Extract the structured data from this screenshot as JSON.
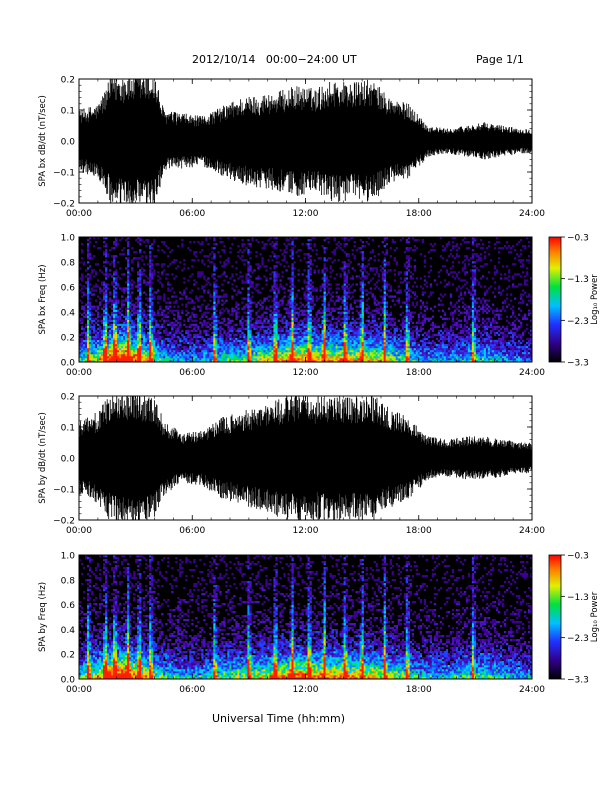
{
  "header": {
    "title": "2012/10/14   00:00−24:00 UT",
    "page": "Page 1/1"
  },
  "xaxis_title": "Universal Time (hh:mm)",
  "chart_data": [
    {
      "type": "line",
      "ylabel": "SPA bx dB/dt (nT/sec)",
      "xlim": [
        0,
        24
      ],
      "ylim": [
        -0.2,
        0.2
      ],
      "xticks": [
        0,
        6,
        12,
        18,
        24
      ],
      "xtick_labels": [
        "00:00",
        "06:00",
        "12:00",
        "18:00",
        "24:00"
      ],
      "yticks": [
        -0.2,
        -0.1,
        0.0,
        0.1,
        0.2
      ],
      "ytick_labels": [
        "−0.2",
        "−0.1",
        "0.0",
        "0.1",
        "0.2"
      ],
      "envelope": {
        "hours": [
          0,
          1,
          1.8,
          2.5,
          3.2,
          4.0,
          4.5,
          5.5,
          6.5,
          7.5,
          8.5,
          9.5,
          10.5,
          11.5,
          12.5,
          13.5,
          14.5,
          15.5,
          16.5,
          17.5,
          18.5,
          19.5,
          20.5,
          21.5,
          22.5,
          23.5,
          24
        ],
        "amplitude": [
          0.1,
          0.12,
          0.22,
          0.22,
          0.22,
          0.22,
          0.1,
          0.09,
          0.08,
          0.11,
          0.14,
          0.15,
          0.16,
          0.18,
          0.17,
          0.2,
          0.19,
          0.2,
          0.14,
          0.12,
          0.05,
          0.04,
          0.05,
          0.06,
          0.05,
          0.04,
          0.04
        ]
      }
    },
    {
      "type": "heatmap",
      "ylabel": "SPA bx Freq (Hz)",
      "xlim": [
        0,
        24
      ],
      "ylim": [
        0,
        1.0
      ],
      "xticks": [
        0,
        6,
        12,
        18,
        24
      ],
      "xtick_labels": [
        "00:00",
        "06:00",
        "12:00",
        "18:00",
        "24:00"
      ],
      "yticks": [
        0,
        0.2,
        0.4,
        0.6,
        0.8,
        1.0
      ],
      "ytick_labels": [
        "0.0",
        "0.2",
        "0.4",
        "0.6",
        "0.8",
        "1.0"
      ],
      "colorbar": {
        "label": "Log₁₀ Power",
        "range": [
          -3.3,
          -0.3
        ],
        "ticks": [
          -0.3,
          -1.3,
          -2.3,
          -3.3
        ],
        "tick_labels": [
          "−0.3",
          "−1.3",
          "−2.3",
          "−3.3"
        ]
      },
      "activity": {
        "hours": [
          0,
          1,
          1.8,
          2.5,
          3.2,
          4.0,
          4.5,
          5.5,
          6.5,
          7.5,
          8.5,
          9.5,
          10.5,
          11.5,
          12.5,
          13.5,
          14.5,
          15.5,
          16.5,
          17.5,
          18.5,
          19.5,
          20.5,
          21.5,
          22.5,
          23.5,
          24
        ],
        "level": [
          0.45,
          0.6,
          0.95,
          0.9,
          0.75,
          0.55,
          0.4,
          0.35,
          0.35,
          0.45,
          0.5,
          0.55,
          0.65,
          0.75,
          0.7,
          0.7,
          0.65,
          0.65,
          0.55,
          0.45,
          0.35,
          0.35,
          0.4,
          0.45,
          0.35,
          0.3,
          0.3
        ]
      },
      "bursts_hours": [
        0.5,
        1.4,
        1.9,
        2.6,
        3.2,
        3.8,
        7.2,
        9.0,
        10.4,
        11.3,
        12.2,
        13.0,
        14.1,
        15.0,
        16.2,
        17.4,
        20.9
      ]
    },
    {
      "type": "line",
      "ylabel": "SPA by dB/dt (nT/sec)",
      "xlim": [
        0,
        24
      ],
      "ylim": [
        -0.2,
        0.2
      ],
      "xticks": [
        0,
        6,
        12,
        18,
        24
      ],
      "xtick_labels": [
        "00:00",
        "06:00",
        "12:00",
        "18:00",
        "24:00"
      ],
      "yticks": [
        -0.2,
        -0.1,
        0.0,
        0.1,
        0.2
      ],
      "ytick_labels": [
        "−0.2",
        "−0.1",
        "0.0",
        "0.1",
        "0.2"
      ],
      "envelope": {
        "hours": [
          0,
          1,
          1.8,
          2.5,
          3.2,
          4.0,
          4.5,
          5.5,
          6.5,
          7.5,
          8.5,
          9.5,
          10.5,
          11.5,
          12.5,
          13.5,
          14.5,
          15.5,
          16.5,
          17.5,
          18.5,
          19.5,
          20.5,
          21.5,
          22.5,
          23.5,
          24
        ],
        "amplitude": [
          0.12,
          0.15,
          0.22,
          0.22,
          0.22,
          0.2,
          0.12,
          0.08,
          0.09,
          0.13,
          0.15,
          0.17,
          0.19,
          0.21,
          0.2,
          0.21,
          0.2,
          0.21,
          0.16,
          0.13,
          0.07,
          0.06,
          0.07,
          0.07,
          0.06,
          0.05,
          0.05
        ]
      }
    },
    {
      "type": "heatmap",
      "ylabel": "SPA by Freq (Hz)",
      "xlim": [
        0,
        24
      ],
      "ylim": [
        0,
        1.0
      ],
      "xticks": [
        0,
        6,
        12,
        18,
        24
      ],
      "xtick_labels": [
        "00:00",
        "06:00",
        "12:00",
        "18:00",
        "24:00"
      ],
      "yticks": [
        0,
        0.2,
        0.4,
        0.6,
        0.8,
        1.0
      ],
      "ytick_labels": [
        "0.0",
        "0.2",
        "0.4",
        "0.6",
        "0.8",
        "1.0"
      ],
      "colorbar": {
        "label": "Log₁₀ Power",
        "range": [
          -3.3,
          -0.3
        ],
        "ticks": [
          -0.3,
          -1.3,
          -2.3,
          -3.3
        ],
        "tick_labels": [
          "−0.3",
          "−1.3",
          "−2.3",
          "−3.3"
        ]
      },
      "activity": {
        "hours": [
          0,
          1,
          1.8,
          2.5,
          3.2,
          4.0,
          4.5,
          5.5,
          6.5,
          7.5,
          8.5,
          9.5,
          10.5,
          11.5,
          12.5,
          13.5,
          14.5,
          15.5,
          16.5,
          17.5,
          18.5,
          19.5,
          20.5,
          21.5,
          22.5,
          23.5,
          24
        ],
        "level": [
          0.5,
          0.65,
          0.95,
          0.9,
          0.75,
          0.55,
          0.45,
          0.4,
          0.4,
          0.5,
          0.55,
          0.6,
          0.7,
          0.8,
          0.75,
          0.75,
          0.7,
          0.7,
          0.6,
          0.5,
          0.4,
          0.4,
          0.45,
          0.5,
          0.4,
          0.35,
          0.35
        ]
      },
      "bursts_hours": [
        0.5,
        1.4,
        1.9,
        2.6,
        3.2,
        3.8,
        7.2,
        9.0,
        10.4,
        11.3,
        12.2,
        13.0,
        14.1,
        15.0,
        16.2,
        17.4,
        20.9
      ]
    }
  ]
}
